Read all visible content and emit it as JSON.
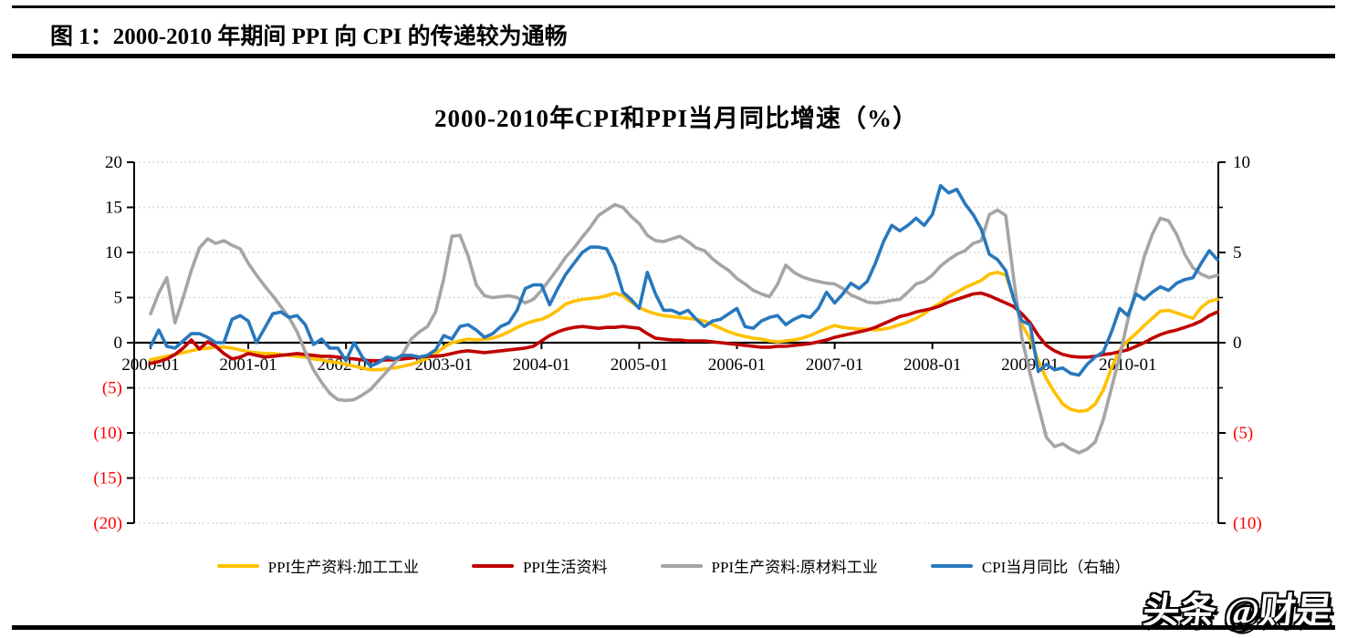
{
  "header": {
    "figure_title": "图 1：2000-2010 年期间 PPI 向 CPI 的传递较为通畅"
  },
  "footer": {
    "watermark": "头条 @财是"
  },
  "chart_data": {
    "type": "line",
    "title": "2000-2010年CPI和PPI当月同比增速（%）",
    "grid": "dotted horizontal gridlines at every 5 units of left axis, none at 0",
    "legend_position": "bottom",
    "style": {
      "axis_color": "#000000",
      "gridline_color": "#d8d8d8",
      "positive_label_color": "#000000",
      "negative_label_color": "#ff0000"
    },
    "x_months": {
      "start": "2000-01",
      "end": "2010-12",
      "points_per_series": 132
    },
    "x_axis": {
      "tick_labels": [
        "2000-01",
        "2001-01",
        "2002-01",
        "2003-01",
        "2004-01",
        "2005-01",
        "2006-01",
        "2007-01",
        "2008-01",
        "2009-01",
        "2010-01"
      ],
      "tick_month_indices": [
        0,
        12,
        24,
        36,
        48,
        60,
        72,
        84,
        96,
        108,
        120
      ]
    },
    "left_axis": {
      "values": [
        20,
        15,
        10,
        5,
        0,
        -5,
        -10,
        -15,
        -20
      ],
      "labels": [
        "20",
        "15",
        "10",
        "5",
        "0",
        "(5)",
        "(10)",
        "(15)",
        "(20)"
      ],
      "range": [
        -20,
        20
      ]
    },
    "right_axis": {
      "values": [
        10,
        5,
        0,
        -5,
        -10
      ],
      "labels": [
        "10",
        "5",
        "0",
        "(5)",
        "(10)"
      ],
      "range": [
        -10,
        10
      ],
      "note": "CPI series plotted on this axis"
    },
    "series": [
      {
        "name": "PPI生产资料:加工工业",
        "color": "#FFC000",
        "axis": "left",
        "values": [
          -1.9,
          -1.7,
          -1.5,
          -1.3,
          -1.1,
          -0.9,
          -0.7,
          -0.6,
          -0.5,
          -0.5,
          -0.6,
          -0.8,
          -1.0,
          -1.1,
          -1.2,
          -1.2,
          -1.3,
          -1.4,
          -1.5,
          -1.6,
          -1.8,
          -1.9,
          -2.1,
          -2.2,
          -2.4,
          -2.6,
          -2.8,
          -3.0,
          -3.0,
          -2.9,
          -2.8,
          -2.6,
          -2.4,
          -2.1,
          -1.7,
          -1.2,
          -0.5,
          0.0,
          0.2,
          0.4,
          0.3,
          0.4,
          0.5,
          0.8,
          1.2,
          1.7,
          2.1,
          2.4,
          2.6,
          3.0,
          3.6,
          4.3,
          4.6,
          4.8,
          4.9,
          5.0,
          5.2,
          5.5,
          5.2,
          4.5,
          3.9,
          3.5,
          3.2,
          3.0,
          2.9,
          2.8,
          2.7,
          2.6,
          2.4,
          2.0,
          1.6,
          1.2,
          0.9,
          0.7,
          0.5,
          0.4,
          0.2,
          0.1,
          0.2,
          0.3,
          0.5,
          0.8,
          1.2,
          1.6,
          1.9,
          1.7,
          1.6,
          1.5,
          1.5,
          1.4,
          1.5,
          1.7,
          2.0,
          2.3,
          2.7,
          3.2,
          3.9,
          4.4,
          5.1,
          5.6,
          6.1,
          6.5,
          6.9,
          7.6,
          7.8,
          7.5,
          5.0,
          2.0,
          0.4,
          -2.0,
          -4.0,
          -5.5,
          -6.8,
          -7.4,
          -7.6,
          -7.5,
          -6.8,
          -5.2,
          -2.8,
          -0.8,
          0.2,
          1.0,
          1.9,
          2.7,
          3.5,
          3.6,
          3.3,
          3.0,
          2.7,
          3.9,
          4.6,
          4.8
        ]
      },
      {
        "name": "PPI生活资料",
        "color": "#C00000",
        "axis": "left",
        "values": [
          -2.3,
          -2.1,
          -1.8,
          -1.3,
          -0.6,
          0.3,
          -0.7,
          0.1,
          -0.4,
          -1.2,
          -1.8,
          -1.6,
          -1.2,
          -1.4,
          -1.6,
          -1.5,
          -1.4,
          -1.3,
          -1.2,
          -1.3,
          -1.4,
          -1.5,
          -1.5,
          -1.6,
          -1.7,
          -1.8,
          -1.9,
          -2.0,
          -2.0,
          -1.9,
          -1.9,
          -1.8,
          -1.7,
          -1.6,
          -1.5,
          -1.5,
          -1.4,
          -1.2,
          -1.0,
          -0.9,
          -1.0,
          -1.1,
          -1.0,
          -0.9,
          -0.8,
          -0.7,
          -0.6,
          -0.4,
          0.2,
          0.8,
          1.2,
          1.5,
          1.7,
          1.8,
          1.7,
          1.6,
          1.7,
          1.7,
          1.8,
          1.7,
          1.6,
          1.0,
          0.5,
          0.4,
          0.3,
          0.3,
          0.2,
          0.2,
          0.2,
          0.1,
          0.0,
          -0.1,
          -0.2,
          -0.3,
          -0.4,
          -0.5,
          -0.5,
          -0.4,
          -0.4,
          -0.3,
          -0.2,
          -0.1,
          0.1,
          0.3,
          0.6,
          0.8,
          1.0,
          1.2,
          1.4,
          1.7,
          2.1,
          2.5,
          2.9,
          3.1,
          3.4,
          3.6,
          3.8,
          4.1,
          4.5,
          4.8,
          5.1,
          5.4,
          5.5,
          5.2,
          4.8,
          4.4,
          4.0,
          3.2,
          2.2,
          0.8,
          -0.3,
          -0.9,
          -1.3,
          -1.5,
          -1.6,
          -1.6,
          -1.5,
          -1.3,
          -1.2,
          -1.0,
          -0.8,
          -0.4,
          0.0,
          0.5,
          0.9,
          1.2,
          1.4,
          1.7,
          2.0,
          2.4,
          3.0,
          3.4
        ]
      },
      {
        "name": "PPI生产资料:原材料工业",
        "color": "#A5A5A5",
        "axis": "left",
        "values": [
          3.2,
          5.5,
          7.2,
          2.2,
          5.0,
          8.0,
          10.5,
          11.5,
          11.0,
          11.3,
          10.8,
          10.4,
          8.8,
          7.5,
          6.3,
          5.2,
          4.0,
          2.8,
          1.2,
          -1.0,
          -3.0,
          -4.4,
          -5.6,
          -6.3,
          -6.4,
          -6.3,
          -5.8,
          -5.2,
          -4.2,
          -3.2,
          -2.2,
          -1.2,
          0.4,
          1.2,
          1.8,
          3.4,
          7.1,
          11.8,
          11.9,
          9.6,
          6.4,
          5.2,
          5.0,
          5.1,
          5.2,
          5.0,
          4.4,
          4.8,
          5.8,
          7.0,
          8.2,
          9.5,
          10.5,
          11.7,
          12.8,
          14.1,
          14.7,
          15.3,
          15.0,
          14.0,
          13.2,
          11.9,
          11.3,
          11.2,
          11.5,
          11.8,
          11.2,
          10.5,
          10.2,
          9.3,
          8.6,
          8.0,
          7.1,
          6.5,
          5.8,
          5.4,
          5.1,
          6.5,
          8.6,
          7.8,
          7.3,
          7.0,
          6.8,
          6.6,
          6.5,
          6.0,
          5.3,
          4.9,
          4.5,
          4.4,
          4.5,
          4.7,
          4.8,
          5.6,
          6.5,
          6.8,
          7.5,
          8.5,
          9.2,
          9.8,
          10.2,
          11.0,
          11.3,
          14.2,
          14.7,
          14.1,
          7.0,
          0.5,
          -3.5,
          -7.0,
          -10.5,
          -11.5,
          -11.2,
          -11.8,
          -12.2,
          -11.8,
          -11.0,
          -8.5,
          -5.0,
          -1.5,
          2.5,
          6.0,
          9.5,
          12.0,
          13.8,
          13.5,
          12.0,
          9.8,
          8.3,
          7.6,
          7.2,
          7.5
        ]
      },
      {
        "name": "CPI当月同比（右轴）",
        "color": "#2878BD",
        "axis": "right",
        "values": [
          -0.2,
          0.7,
          -0.2,
          -0.3,
          0.1,
          0.5,
          0.5,
          0.3,
          0.0,
          0.0,
          1.3,
          1.5,
          1.2,
          0.0,
          0.8,
          1.6,
          1.7,
          1.4,
          1.5,
          1.0,
          -0.1,
          0.2,
          -0.3,
          -0.3,
          -1.0,
          0.0,
          -0.8,
          -1.3,
          -1.1,
          -0.8,
          -0.9,
          -0.7,
          -0.7,
          -0.8,
          -0.7,
          -0.4,
          0.4,
          0.2,
          0.9,
          1.0,
          0.7,
          0.3,
          0.5,
          0.9,
          1.1,
          1.8,
          3.0,
          3.2,
          3.2,
          2.1,
          3.0,
          3.8,
          4.4,
          5.0,
          5.3,
          5.3,
          5.2,
          4.3,
          2.8,
          2.4,
          1.9,
          3.9,
          2.7,
          1.8,
          1.8,
          1.6,
          1.8,
          1.3,
          0.9,
          1.2,
          1.3,
          1.6,
          1.9,
          0.9,
          0.8,
          1.2,
          1.4,
          1.5,
          1.0,
          1.3,
          1.5,
          1.4,
          1.9,
          2.8,
          2.2,
          2.7,
          3.3,
          3.0,
          3.4,
          4.4,
          5.6,
          6.5,
          6.2,
          6.5,
          6.9,
          6.5,
          7.1,
          8.7,
          8.3,
          8.5,
          7.7,
          7.1,
          6.3,
          4.9,
          4.6,
          4.0,
          2.4,
          1.2,
          1.0,
          -1.6,
          -1.2,
          -1.5,
          -1.4,
          -1.7,
          -1.8,
          -1.2,
          -0.8,
          -0.5,
          0.6,
          1.9,
          1.5,
          2.7,
          2.4,
          2.8,
          3.1,
          2.9,
          3.3,
          3.5,
          3.6,
          4.4,
          5.1,
          4.6
        ]
      }
    ]
  }
}
